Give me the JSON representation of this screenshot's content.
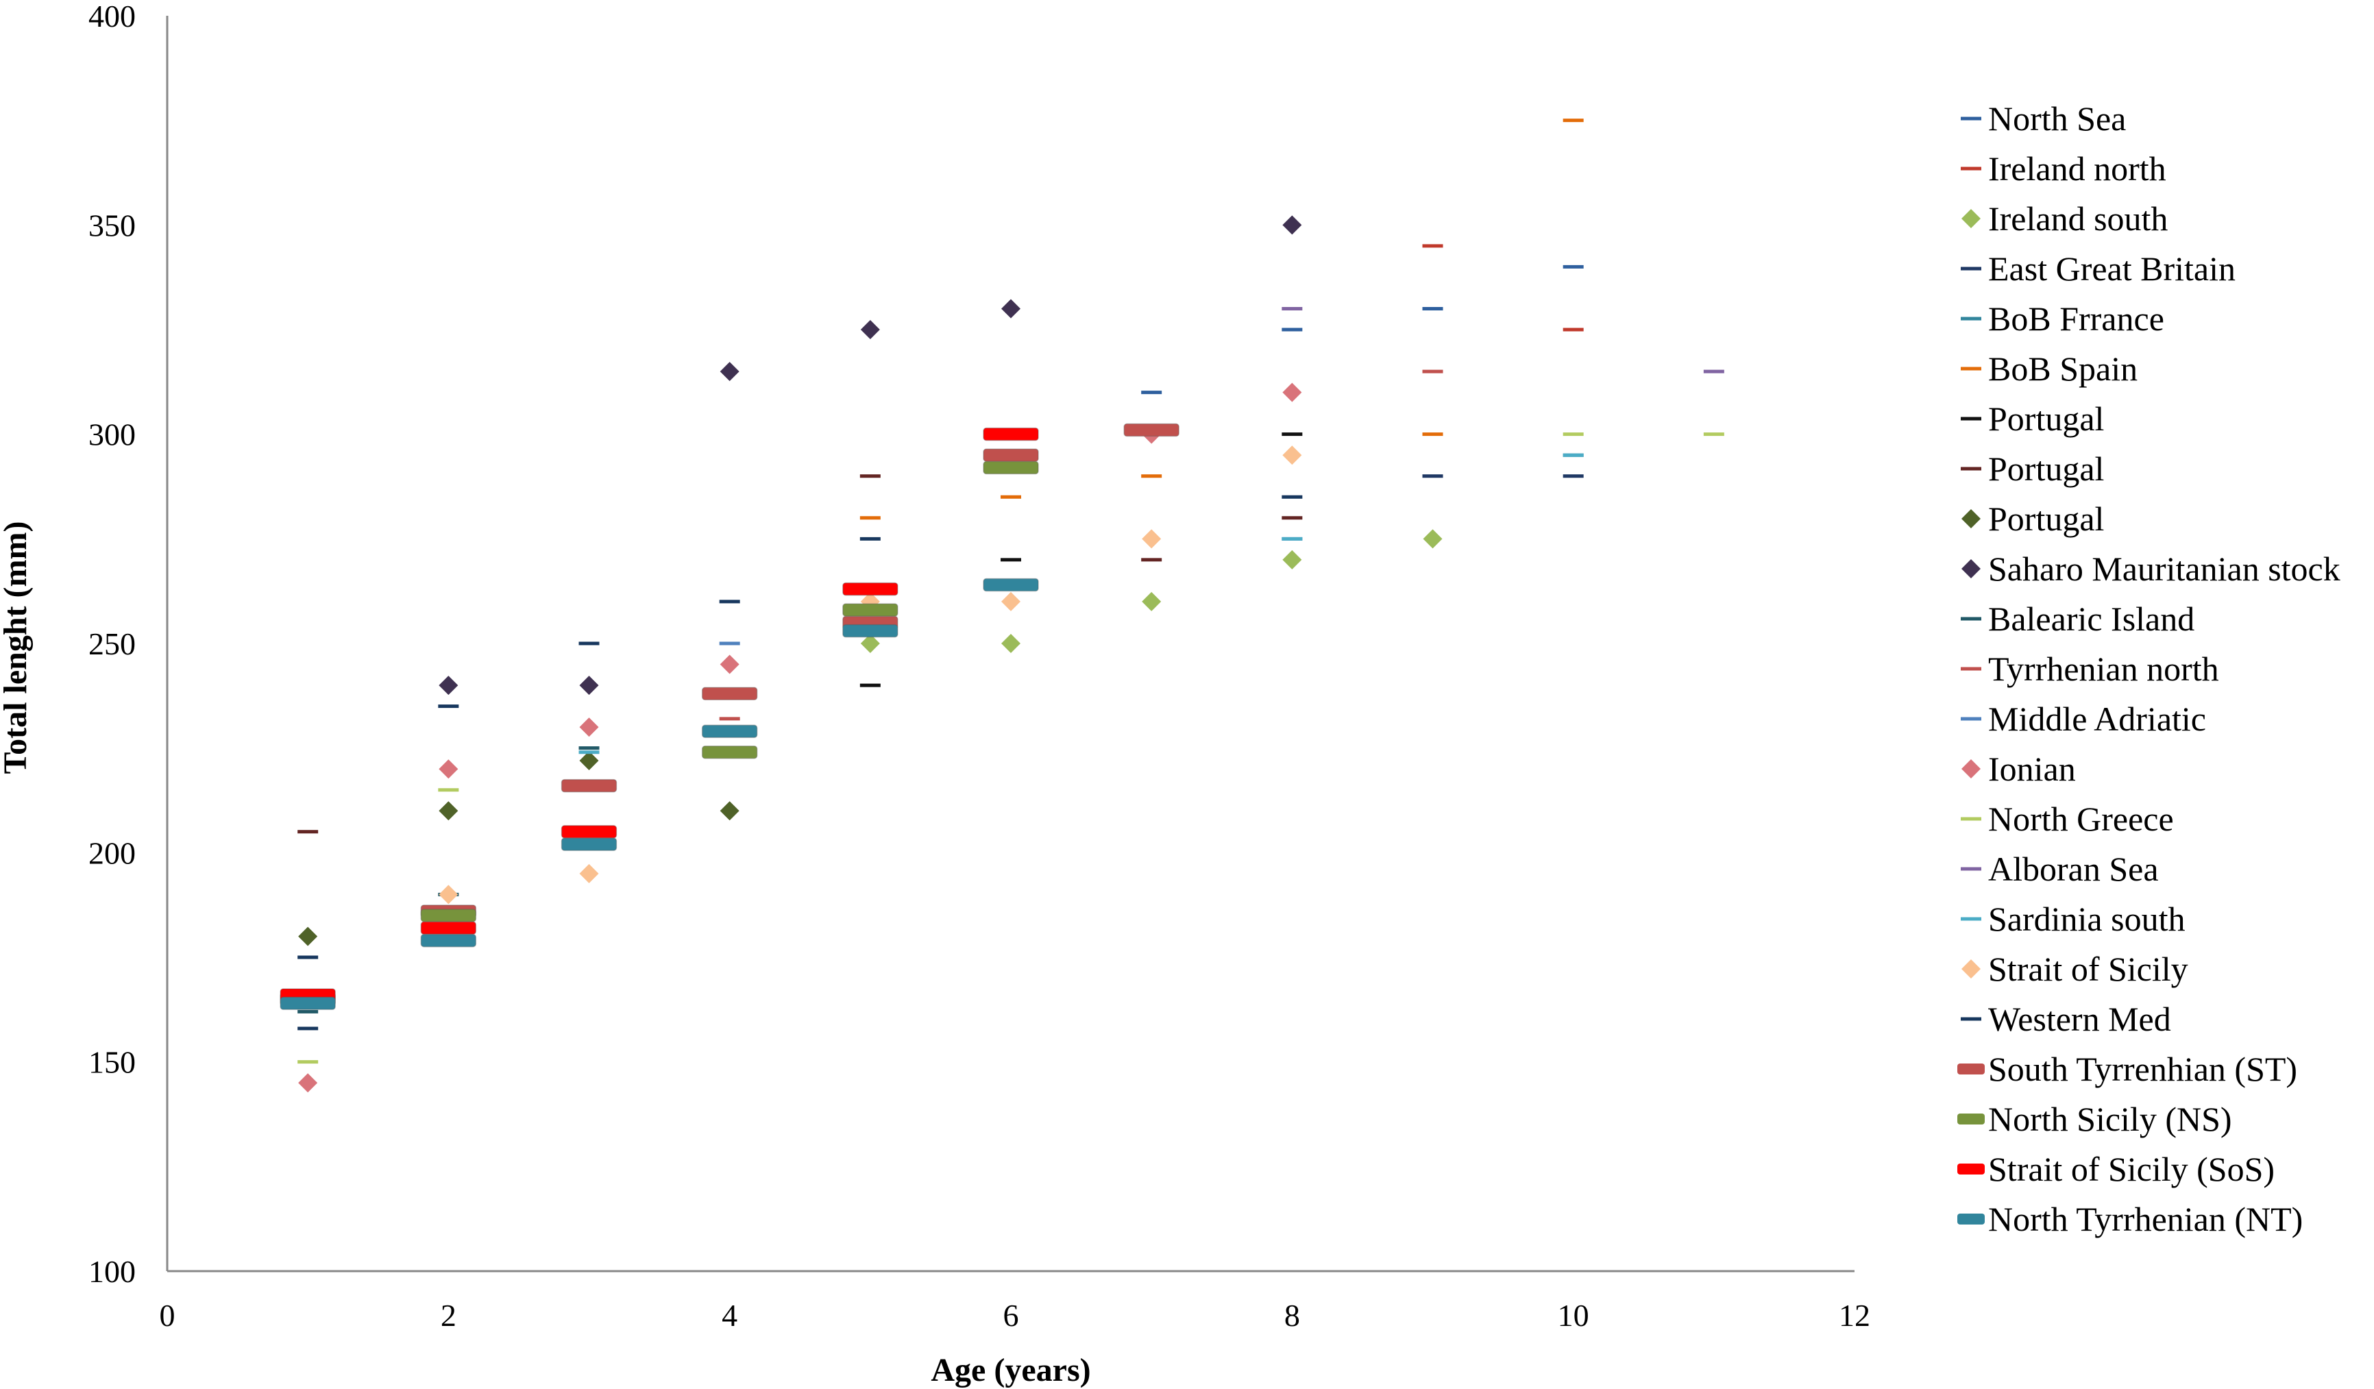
{
  "chart_data": {
    "type": "scatter",
    "title": "",
    "xlabel": "Age (years)",
    "ylabel": "Total lenght (mm)",
    "xlim": [
      0,
      12
    ],
    "ylim": [
      100,
      400
    ],
    "xticks": [
      0,
      2,
      4,
      6,
      8,
      10,
      12
    ],
    "yticks": [
      100,
      150,
      200,
      250,
      300,
      350,
      400
    ],
    "grid": false,
    "legend_position": "right",
    "series": [
      {
        "name": "North Sea",
        "marker": "dash",
        "color": "#2e5f9e",
        "points": [
          [
            7,
            310
          ],
          [
            8,
            325
          ],
          [
            9,
            330
          ],
          [
            10,
            340
          ]
        ]
      },
      {
        "name": "Ireland north",
        "marker": "dash",
        "color": "#c0392b",
        "points": [
          [
            9,
            345
          ],
          [
            10,
            325
          ]
        ]
      },
      {
        "name": "Ireland south",
        "marker": "diamond",
        "color": "#9bbb59",
        "points": [
          [
            5,
            250
          ],
          [
            6,
            250
          ],
          [
            7,
            260
          ],
          [
            8,
            270
          ],
          [
            9,
            275
          ]
        ]
      },
      {
        "name": "East Great Britain",
        "marker": "dash",
        "color": "#1f3864",
        "points": [
          [
            9,
            290
          ],
          [
            10,
            290
          ]
        ]
      },
      {
        "name": "BoB Frrance",
        "marker": "dash",
        "color": "#31859c",
        "points": [
          [
            10,
            295
          ]
        ]
      },
      {
        "name": "BoB Spain",
        "marker": "dash",
        "color": "#e36c09",
        "points": [
          [
            5,
            280
          ],
          [
            6,
            285
          ],
          [
            7,
            290
          ],
          [
            9,
            300
          ],
          [
            10,
            375
          ]
        ]
      },
      {
        "name": "Portugal",
        "marker": "dash",
        "color": "#111111",
        "points": [
          [
            5,
            240
          ],
          [
            6,
            270
          ],
          [
            8,
            300
          ]
        ]
      },
      {
        "name": "Portugal",
        "marker": "dash",
        "color": "#632523",
        "points": [
          [
            1,
            205
          ],
          [
            5,
            290
          ],
          [
            7,
            270
          ],
          [
            8,
            280
          ]
        ]
      },
      {
        "name": "Portugal",
        "marker": "diamond",
        "color": "#4f6228",
        "points": [
          [
            1,
            180
          ],
          [
            2,
            210
          ],
          [
            3,
            222
          ],
          [
            4,
            210
          ]
        ]
      },
      {
        "name": "Saharo Mauritanian stock",
        "marker": "diamond",
        "color": "#3f3151",
        "points": [
          [
            2,
            240
          ],
          [
            3,
            240
          ],
          [
            4,
            315
          ],
          [
            5,
            325
          ],
          [
            6,
            330
          ],
          [
            8,
            350
          ]
        ]
      },
      {
        "name": "Balearic Island",
        "marker": "dash",
        "color": "#215967",
        "points": [
          [
            1,
            162
          ],
          [
            2,
            190
          ],
          [
            3,
            225
          ]
        ]
      },
      {
        "name": "Tyrrhenian north",
        "marker": "dash",
        "color": "#c0504d",
        "points": [
          [
            4,
            232
          ],
          [
            9,
            315
          ]
        ]
      },
      {
        "name": "Middle Adriatic",
        "marker": "dash",
        "color": "#4f81bd",
        "points": [
          [
            4,
            250
          ],
          [
            8,
            275
          ]
        ]
      },
      {
        "name": "Ionian",
        "marker": "diamond",
        "color": "#d9737a",
        "points": [
          [
            1,
            145
          ],
          [
            2,
            220
          ],
          [
            3,
            230
          ],
          [
            4,
            245
          ],
          [
            7,
            300
          ],
          [
            8,
            310
          ]
        ]
      },
      {
        "name": "North Greece",
        "marker": "dash",
        "color": "#b2cb60",
        "points": [
          [
            1,
            150
          ],
          [
            2,
            215
          ],
          [
            10,
            300
          ],
          [
            11,
            300
          ]
        ]
      },
      {
        "name": "Alboran Sea",
        "marker": "dash",
        "color": "#8064a2",
        "points": [
          [
            8,
            330
          ],
          [
            11,
            315
          ]
        ]
      },
      {
        "name": "Sardinia south",
        "marker": "dash",
        "color": "#4bacc6",
        "points": [
          [
            3,
            224
          ],
          [
            8,
            275
          ],
          [
            10,
            295
          ]
        ]
      },
      {
        "name": "Strait of Sicily",
        "marker": "diamond",
        "color": "#fac08f",
        "points": [
          [
            2,
            190
          ],
          [
            3,
            195
          ],
          [
            5,
            260
          ],
          [
            6,
            260
          ],
          [
            7,
            275
          ],
          [
            8,
            295
          ]
        ]
      },
      {
        "name": "Western Med",
        "marker": "dash",
        "color": "#17375e",
        "points": [
          [
            1,
            175
          ],
          [
            1,
            158
          ],
          [
            2,
            235
          ],
          [
            3,
            250
          ],
          [
            4,
            260
          ],
          [
            5,
            275
          ],
          [
            8,
            285
          ]
        ]
      },
      {
        "name": "South Tyrrenhian (ST)",
        "marker": "bar",
        "color": "#c0504d",
        "points": [
          [
            1,
            165
          ],
          [
            2,
            186
          ],
          [
            3,
            216
          ],
          [
            4,
            238
          ],
          [
            5,
            255
          ],
          [
            6,
            295
          ],
          [
            7,
            301
          ]
        ]
      },
      {
        "name": "North Sicily (NS)",
        "marker": "bar",
        "color": "#77933c",
        "points": [
          [
            2,
            185
          ],
          [
            4,
            224
          ],
          [
            5,
            258
          ],
          [
            6,
            292
          ]
        ]
      },
      {
        "name": "Strait of Sicily (SoS)",
        "marker": "bar",
        "color": "#ff0000",
        "points": [
          [
            1,
            166
          ],
          [
            2,
            182
          ],
          [
            3,
            205
          ],
          [
            5,
            263
          ],
          [
            6,
            300
          ]
        ]
      },
      {
        "name": "North Tyrrhenian (NT)",
        "marker": "bar",
        "color": "#31859c",
        "points": [
          [
            1,
            164
          ],
          [
            2,
            179
          ],
          [
            3,
            202
          ],
          [
            4,
            229
          ],
          [
            5,
            253
          ],
          [
            6,
            264
          ]
        ]
      }
    ]
  }
}
